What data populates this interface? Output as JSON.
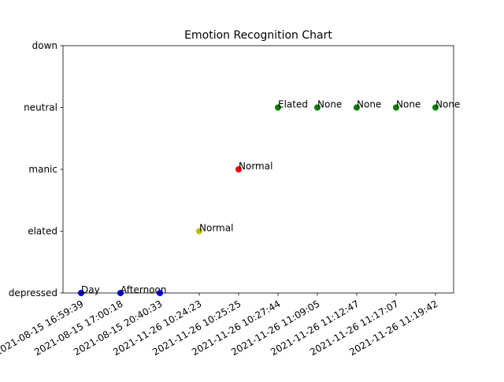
{
  "chart_data": {
    "type": "scatter",
    "title": "Emotion Recognition Chart",
    "xlabel": "",
    "ylabel": "",
    "grid": false,
    "legend": "none",
    "x_categories": [
      "2021-08-15 16:59:39",
      "2021-08-15 17:00:18",
      "2021-08-15 20:40:33",
      "2021-11-26 10:24:23",
      "2021-11-26 10:25:25",
      "2021-11-26 10:27:44",
      "2021-11-26 11:09:05",
      "2021-11-26 11:12:47",
      "2021-11-26 11:17:07",
      "2021-11-26 11:19:42"
    ],
    "y_categories": [
      "depressed",
      "elated",
      "manic",
      "neutral",
      "down"
    ],
    "points": [
      {
        "x": "2021-08-15 16:59:39",
        "y": "depressed",
        "label": "Day",
        "color": "#0000ff"
      },
      {
        "x": "2021-08-15 17:00:18",
        "y": "depressed",
        "label": "Afternoon",
        "color": "#0000ff"
      },
      {
        "x": "2021-08-15 20:40:33",
        "y": "depressed",
        "label": "",
        "color": "#0000ff"
      },
      {
        "x": "2021-11-26 10:24:23",
        "y": "elated",
        "label": "Normal",
        "color": "#bfbf00"
      },
      {
        "x": "2021-11-26 10:25:25",
        "y": "manic",
        "label": "Normal",
        "color": "#ff0000"
      },
      {
        "x": "2021-11-26 10:27:44",
        "y": "neutral",
        "label": "Elated",
        "color": "#008000"
      },
      {
        "x": "2021-11-26 11:09:05",
        "y": "neutral",
        "label": "None",
        "color": "#008000"
      },
      {
        "x": "2021-11-26 11:12:47",
        "y": "neutral",
        "label": "None",
        "color": "#008000"
      },
      {
        "x": "2021-11-26 11:17:07",
        "y": "neutral",
        "label": "None",
        "color": "#008000"
      },
      {
        "x": "2021-11-26 11:19:42",
        "y": "neutral",
        "label": "None",
        "color": "#008000"
      }
    ]
  }
}
